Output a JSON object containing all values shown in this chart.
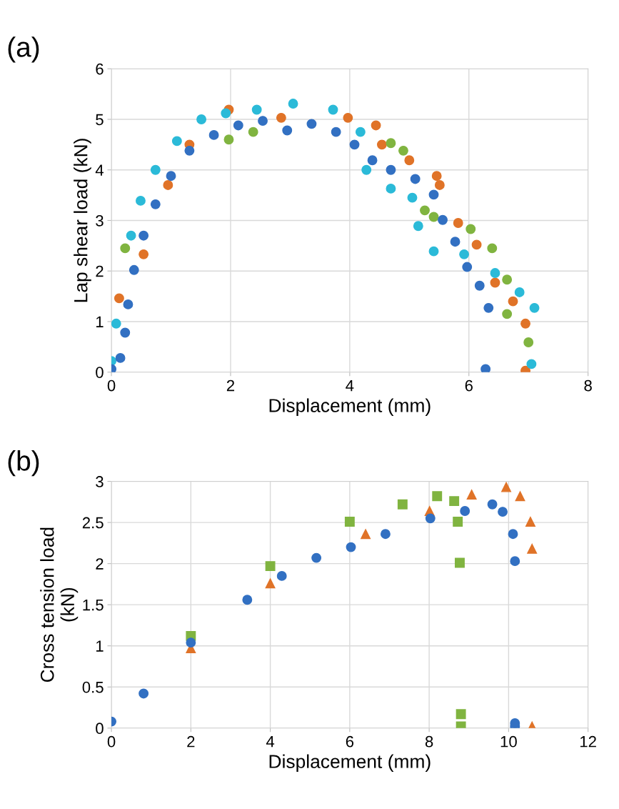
{
  "chart_data": [
    {
      "type": "scatter",
      "title": "(a)",
      "xlabel": "Displacement (mm)",
      "ylabel": "Lap shear load (kN)",
      "xlim": [
        0,
        8
      ],
      "ylim": [
        0,
        6
      ],
      "xticks": [
        0,
        2,
        4,
        6,
        8
      ],
      "yticks": [
        0,
        1,
        2,
        3,
        4,
        5,
        6
      ],
      "grid": true,
      "legend": false,
      "marker": "circle",
      "series": [
        {
          "color": "#e07328",
          "x": [
            0.13,
            0.54,
            0.95,
            1.31,
            1.97,
            2.85,
            3.97,
            4.44,
            4.54,
            5.0,
            5.46,
            5.51,
            5.82,
            6.13,
            6.44,
            6.74,
            6.95,
            6.95
          ],
          "values": [
            1.46,
            2.33,
            3.7,
            4.5,
            5.19,
            5.03,
            5.03,
            4.88,
            4.5,
            4.19,
            3.88,
            3.7,
            2.95,
            2.52,
            1.77,
            1.4,
            0.96,
            0.03
          ]
        },
        {
          "color": "#80b440",
          "x": [
            0.23,
            1.97,
            2.38,
            4.69,
            4.9,
            5.26,
            5.41,
            6.03,
            6.39,
            6.64,
            6.64,
            7.0
          ],
          "values": [
            2.45,
            4.6,
            4.75,
            4.53,
            4.38,
            3.2,
            3.07,
            2.83,
            2.45,
            1.83,
            1.15,
            0.59
          ]
        },
        {
          "color": "#2bbad8",
          "x": [
            0,
            0.08,
            0.33,
            0.49,
            0.74,
            1.1,
            1.51,
            1.92,
            2.44,
            3.05,
            3.72,
            4.18,
            4.28,
            4.69,
            5.05,
            5.15,
            5.41,
            5.92,
            6.44,
            6.85,
            7.1,
            7.05
          ],
          "values": [
            0.22,
            0.96,
            2.7,
            3.39,
            4.0,
            4.57,
            5.0,
            5.12,
            5.19,
            5.31,
            5.19,
            4.75,
            4.0,
            3.63,
            3.45,
            2.89,
            2.39,
            2.33,
            1.96,
            1.58,
            1.27,
            0.16
          ]
        },
        {
          "color": "#3270c2",
          "x": [
            0,
            0.15,
            0.23,
            0.28,
            0.38,
            0.54,
            0.74,
            1.0,
            1.31,
            1.72,
            2.13,
            2.54,
            2.95,
            3.36,
            3.77,
            4.08,
            4.38,
            4.69,
            5.1,
            5.41,
            5.56,
            5.77,
            5.97,
            6.18,
            6.33,
            6.28
          ],
          "values": [
            0.06,
            0.28,
            0.78,
            1.34,
            2.02,
            2.7,
            3.32,
            3.88,
            4.38,
            4.69,
            4.88,
            4.97,
            4.78,
            4.91,
            4.75,
            4.5,
            4.19,
            4.0,
            3.82,
            3.51,
            3.01,
            2.58,
            2.08,
            1.71,
            1.27,
            0.06
          ]
        }
      ]
    },
    {
      "type": "scatter",
      "title": "(b)",
      "xlabel": "Displacement (mm)",
      "ylabel": "Cross tension load\n(kN)",
      "xlim": [
        0,
        12
      ],
      "ylim": [
        0,
        3
      ],
      "xticks": [
        0,
        2,
        4,
        6,
        8,
        10,
        12
      ],
      "yticks": [
        0,
        0.5,
        1,
        1.5,
        2,
        2.5,
        3
      ],
      "grid": true,
      "legend": false,
      "series": [
        {
          "color": "#80b440",
          "marker": "square",
          "x": [
            2,
            4,
            6,
            7.33,
            8.2,
            8.63,
            8.72,
            8.77,
            8.8,
            8.8
          ],
          "values": [
            1.12,
            1.97,
            2.51,
            2.72,
            2.82,
            2.76,
            2.51,
            2.01,
            0.17,
            0.02
          ]
        },
        {
          "color": "#e07328",
          "marker": "triangle",
          "x": [
            2,
            4,
            6.4,
            8.01,
            9.07,
            9.94,
            10.29,
            10.55,
            10.59,
            10.59
          ],
          "values": [
            0.97,
            1.76,
            2.36,
            2.64,
            2.84,
            2.93,
            2.82,
            2.51,
            2.18,
            0.02
          ]
        },
        {
          "color": "#3270c2",
          "marker": "circle",
          "x": [
            0,
            0.81,
            2,
            3.42,
            4.29,
            5.16,
            6.03,
            6.9,
            8.03,
            8.9,
            9.59,
            9.85,
            10.11,
            10.16,
            10.16,
            10.16
          ],
          "values": [
            0.08,
            0.42,
            1.04,
            1.56,
            1.85,
            2.07,
            2.2,
            2.36,
            2.55,
            2.64,
            2.72,
            2.63,
            2.36,
            2.03,
            0.06,
            0.02
          ]
        }
      ]
    }
  ]
}
